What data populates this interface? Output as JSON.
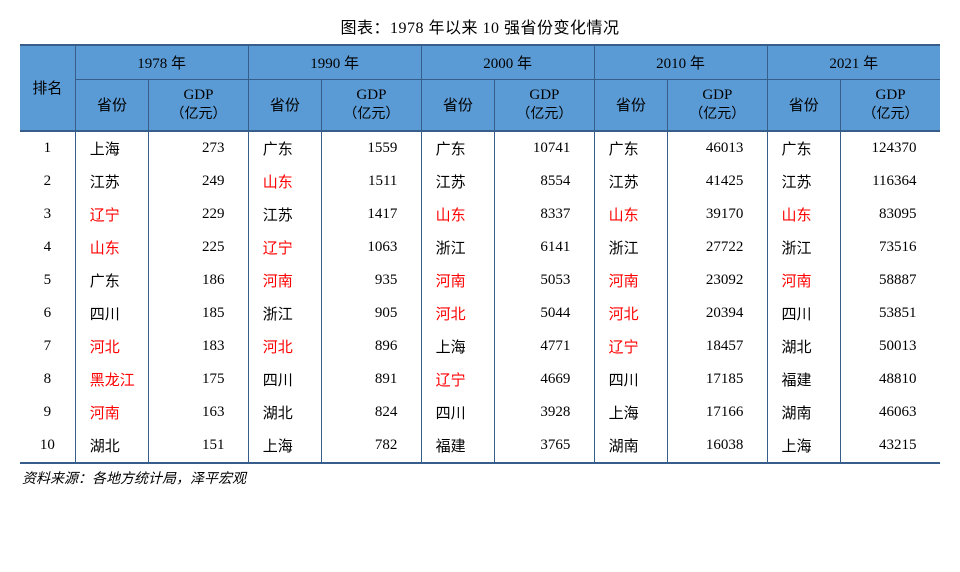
{
  "title": "图表：1978 年以来 10 强省份变化情况",
  "source_label": "资料来源：各地方统计局，泽平宏观",
  "header": {
    "rank": "排名",
    "province": "省份",
    "gdp_line1": "GDP",
    "gdp_line2": "（亿元）"
  },
  "years": [
    "1978 年",
    "1990 年",
    "2000 年",
    "2010 年",
    "2021 年"
  ],
  "colors": {
    "header_bg": "#5b9bd5",
    "border": "#375d8a",
    "highlight_text": "#ff0000",
    "normal_text": "#000000",
    "background": "#ffffff"
  },
  "typography": {
    "title_fontsize": 16,
    "cell_fontsize": 15,
    "source_fontsize": 14,
    "font_family": "SimSun"
  },
  "rows": [
    {
      "rank": "1",
      "cells": [
        {
          "p": "上海",
          "g": "273",
          "hl": false
        },
        {
          "p": "广东",
          "g": "1559",
          "hl": false
        },
        {
          "p": "广东",
          "g": "10741",
          "hl": false
        },
        {
          "p": "广东",
          "g": "46013",
          "hl": false
        },
        {
          "p": "广东",
          "g": "124370",
          "hl": false
        }
      ]
    },
    {
      "rank": "2",
      "cells": [
        {
          "p": "江苏",
          "g": "249",
          "hl": false
        },
        {
          "p": "山东",
          "g": "1511",
          "hl": true
        },
        {
          "p": "江苏",
          "g": "8554",
          "hl": false
        },
        {
          "p": "江苏",
          "g": "41425",
          "hl": false
        },
        {
          "p": "江苏",
          "g": "116364",
          "hl": false
        }
      ]
    },
    {
      "rank": "3",
      "cells": [
        {
          "p": "辽宁",
          "g": "229",
          "hl": true
        },
        {
          "p": "江苏",
          "g": "1417",
          "hl": false
        },
        {
          "p": "山东",
          "g": "8337",
          "hl": true
        },
        {
          "p": "山东",
          "g": "39170",
          "hl": true
        },
        {
          "p": "山东",
          "g": "83095",
          "hl": true
        }
      ]
    },
    {
      "rank": "4",
      "cells": [
        {
          "p": "山东",
          "g": "225",
          "hl": true
        },
        {
          "p": "辽宁",
          "g": "1063",
          "hl": true
        },
        {
          "p": "浙江",
          "g": "6141",
          "hl": false
        },
        {
          "p": "浙江",
          "g": "27722",
          "hl": false
        },
        {
          "p": "浙江",
          "g": "73516",
          "hl": false
        }
      ]
    },
    {
      "rank": "5",
      "cells": [
        {
          "p": "广东",
          "g": "186",
          "hl": false
        },
        {
          "p": "河南",
          "g": "935",
          "hl": true
        },
        {
          "p": "河南",
          "g": "5053",
          "hl": true
        },
        {
          "p": "河南",
          "g": "23092",
          "hl": true
        },
        {
          "p": "河南",
          "g": "58887",
          "hl": true
        }
      ]
    },
    {
      "rank": "6",
      "cells": [
        {
          "p": "四川",
          "g": "185",
          "hl": false
        },
        {
          "p": "浙江",
          "g": "905",
          "hl": false
        },
        {
          "p": "河北",
          "g": "5044",
          "hl": true
        },
        {
          "p": "河北",
          "g": "20394",
          "hl": true
        },
        {
          "p": "四川",
          "g": "53851",
          "hl": false
        }
      ]
    },
    {
      "rank": "7",
      "cells": [
        {
          "p": "河北",
          "g": "183",
          "hl": true
        },
        {
          "p": "河北",
          "g": "896",
          "hl": true
        },
        {
          "p": "上海",
          "g": "4771",
          "hl": false
        },
        {
          "p": "辽宁",
          "g": "18457",
          "hl": true
        },
        {
          "p": "湖北",
          "g": "50013",
          "hl": false
        }
      ]
    },
    {
      "rank": "8",
      "cells": [
        {
          "p": "黑龙江",
          "g": "175",
          "hl": true
        },
        {
          "p": "四川",
          "g": "891",
          "hl": false
        },
        {
          "p": "辽宁",
          "g": "4669",
          "hl": true
        },
        {
          "p": "四川",
          "g": "17185",
          "hl": false
        },
        {
          "p": "福建",
          "g": "48810",
          "hl": false
        }
      ]
    },
    {
      "rank": "9",
      "cells": [
        {
          "p": "河南",
          "g": "163",
          "hl": true
        },
        {
          "p": "湖北",
          "g": "824",
          "hl": false
        },
        {
          "p": "四川",
          "g": "3928",
          "hl": false
        },
        {
          "p": "上海",
          "g": "17166",
          "hl": false
        },
        {
          "p": "湖南",
          "g": "46063",
          "hl": false
        }
      ]
    },
    {
      "rank": "10",
      "cells": [
        {
          "p": "湖北",
          "g": "151",
          "hl": false
        },
        {
          "p": "上海",
          "g": "782",
          "hl": false
        },
        {
          "p": "福建",
          "g": "3765",
          "hl": false
        },
        {
          "p": "湖南",
          "g": "16038",
          "hl": false
        },
        {
          "p": "上海",
          "g": "43215",
          "hl": false
        }
      ]
    }
  ]
}
